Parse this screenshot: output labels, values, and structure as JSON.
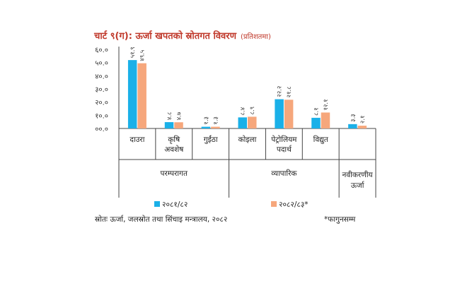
{
  "chart_data": {
    "type": "bar",
    "title": "चार्ट ९(ग): ऊर्जा खपतको स्रोतगत विवरण",
    "subtitle": "(प्रतिशतमा)",
    "ylim": [
      0,
      60
    ],
    "y_ticks": [
      "६०.०",
      "५०.०",
      "४०.०",
      "३०.०",
      "२०.०",
      "१०.०",
      "००.०"
    ],
    "categories": [
      [
        "दाउरा"
      ],
      [
        "कृषि",
        "अवशेष"
      ],
      [
        "गुईंठा"
      ],
      [
        "कोइला"
      ],
      [
        "पेट्रोलियम",
        "पदार्थ"
      ],
      [
        "विद्युत"
      ],
      [
        ""
      ]
    ],
    "groups": [
      {
        "label": [
          "परम्परागत"
        ],
        "span": [
          0,
          2
        ]
      },
      {
        "label": [
          "व्यापारिक"
        ],
        "span": [
          3,
          5
        ]
      },
      {
        "label": [
          "नवीकरणीय",
          "ऊर्जा"
        ],
        "span": [
          6,
          6
        ]
      }
    ],
    "series": [
      {
        "name": "२०८१/८२",
        "color": "#1ab0e8",
        "values": [
          51.9,
          4.8,
          1.3,
          8.4,
          22.2,
          8.1,
          3.3
        ],
        "labels": [
          "५१.९",
          "४.८",
          "१.३",
          "८.४",
          "२२.२",
          "८.१",
          "३.३"
        ]
      },
      {
        "name": "२०८२/८३*",
        "color": "#f6a77c",
        "values": [
          49.5,
          4.7,
          1.3,
          8.9,
          21.8,
          12.1,
          2.1
        ],
        "labels": [
          "४९.५",
          "४.७",
          "१.३",
          "८.९",
          "२१.८",
          "१२.१",
          "२.१"
        ]
      }
    ],
    "source": "स्रोतः ऊर्जा, जलस्रोत तथा सिंचाइ मन्त्रालय, २०८२",
    "note": "*फागुनसम्म"
  }
}
